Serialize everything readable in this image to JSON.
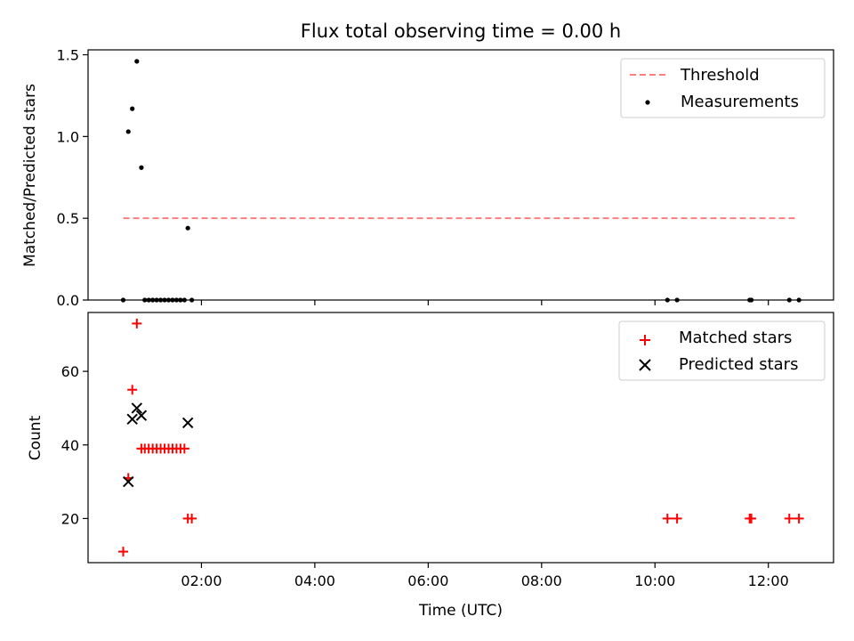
{
  "title": "Flux total observing time = 0.00 h",
  "chart_data": [
    {
      "type": "scatter",
      "ylabel": "Matched/Predicted stars",
      "xlim": [
        0.0,
        13.15
      ],
      "ylim": [
        0.0,
        1.53
      ],
      "x_ticks": [
        "02:00",
        "04:00",
        "06:00",
        "08:00",
        "10:00",
        "12:00"
      ],
      "x_tick_values": [
        2,
        4,
        6,
        8,
        10,
        12
      ],
      "y_ticks": [
        "0.0",
        "0.5",
        "1.0",
        "1.5"
      ],
      "y_tick_values": [
        0.0,
        0.5,
        1.0,
        1.5
      ],
      "legend_position": "top-right",
      "series": [
        {
          "name": "Threshold",
          "kind": "dashed-line",
          "color": "#ff7f7f",
          "x": [
            0.62,
            12.48
          ],
          "y": [
            0.5,
            0.5
          ]
        },
        {
          "name": "Measurements",
          "kind": "dot",
          "color": "#000000",
          "x": [
            0.62,
            0.71,
            0.78,
            0.86,
            0.94,
            1.0,
            1.07,
            1.14,
            1.21,
            1.28,
            1.35,
            1.42,
            1.49,
            1.56,
            1.63,
            1.7,
            1.76,
            1.83,
            10.22,
            10.39,
            11.67,
            11.7,
            12.37,
            12.54
          ],
          "y": [
            0.0,
            1.03,
            1.17,
            1.46,
            0.81,
            0.0,
            0.0,
            0.0,
            0.0,
            0.0,
            0.0,
            0.0,
            0.0,
            0.0,
            0.0,
            0.0,
            0.44,
            0.0,
            0.0,
            0.0,
            0.0,
            0.0,
            0.0,
            0.0
          ]
        }
      ]
    },
    {
      "type": "scatter",
      "xlabel": "Time (UTC)",
      "ylabel": "Count",
      "xlim": [
        0.0,
        13.15
      ],
      "ylim": [
        8.0,
        76.0
      ],
      "x_ticks": [
        "02:00",
        "04:00",
        "06:00",
        "08:00",
        "10:00",
        "12:00"
      ],
      "x_tick_values": [
        2,
        4,
        6,
        8,
        10,
        12
      ],
      "y_ticks": [
        "20",
        "40",
        "60"
      ],
      "y_tick_values": [
        20,
        40,
        60
      ],
      "legend_position": "top-right",
      "series": [
        {
          "name": "Matched stars",
          "kind": "plus",
          "color": "#ff0000",
          "x": [
            0.62,
            0.71,
            0.78,
            0.86,
            0.94,
            1.0,
            1.07,
            1.14,
            1.21,
            1.28,
            1.35,
            1.42,
            1.49,
            1.56,
            1.63,
            1.7,
            1.76,
            1.83,
            10.22,
            10.39,
            11.67,
            11.7,
            12.37,
            12.54
          ],
          "y": [
            11,
            31,
            55,
            73,
            39,
            39,
            39,
            39,
            39,
            39,
            39,
            39,
            39,
            39,
            39,
            39,
            20,
            20,
            20,
            20,
            20,
            20,
            20,
            20
          ]
        },
        {
          "name": "Predicted stars",
          "kind": "cross",
          "color": "#000000",
          "x": [
            0.71,
            0.78,
            0.86,
            0.94,
            1.76
          ],
          "y": [
            30,
            47,
            50,
            48,
            46
          ]
        }
      ]
    }
  ],
  "xlabel": "Time (UTC)"
}
